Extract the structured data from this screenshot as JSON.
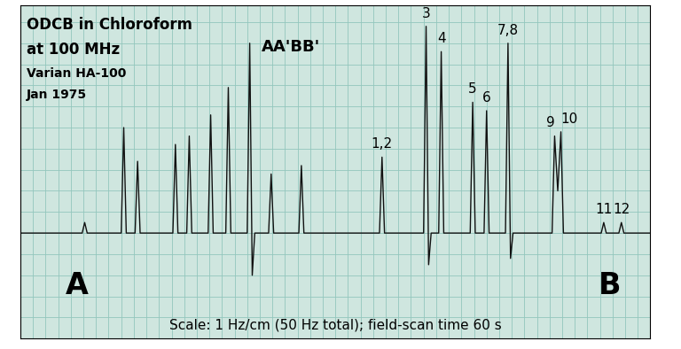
{
  "chart_data": {
    "type": "line",
    "title": "AA'BB'",
    "header": [
      "ODCB in Chloroform",
      "at 100 MHz"
    ],
    "instrument": "Varian HA-100",
    "date": "Jan 1975",
    "footer": "Scale: 1 Hz/cm (50 Hz total); field-scan time 60 s",
    "x": [
      0,
      4.9,
      5.1,
      5.3,
      8.0,
      8.2,
      8.4,
      9.1,
      9.3,
      9.5,
      12.1,
      12.3,
      12.5,
      13.2,
      13.4,
      13.6,
      14.9,
      15.1,
      15.3,
      16.3,
      16.5,
      16.7,
      18.0,
      18.2,
      18.4,
      18.6,
      19.7,
      19.9,
      20.1,
      22.1,
      22.3,
      22.5,
      28.5,
      28.7,
      28.9,
      32.0,
      32.2,
      32.4,
      32.6,
      33.2,
      33.4,
      33.6,
      35.7,
      35.9,
      36.1,
      36.8,
      37.0,
      37.2,
      38.5,
      38.7,
      38.9,
      39.1,
      42.2,
      42.4,
      42.65,
      42.9,
      43.1,
      46.1,
      46.3,
      46.5,
      47.5,
      47.7,
      47.9,
      50
    ],
    "values": [
      0,
      0,
      5,
      0,
      0,
      50,
      0,
      0,
      34,
      0,
      0,
      42,
      0,
      0,
      46,
      0,
      0,
      56,
      0,
      0,
      69,
      0,
      0,
      90,
      -20,
      0,
      0,
      28,
      0,
      0,
      32,
      0,
      0,
      36,
      0,
      0,
      98,
      -15,
      0,
      0,
      86,
      0,
      0,
      62,
      0,
      0,
      58,
      0,
      0,
      90,
      -12,
      0,
      0,
      46,
      20,
      48,
      0,
      0,
      5,
      0,
      0,
      5,
      0,
      0
    ],
    "color": "#111111",
    "peak_labels": [
      {
        "text": "1,2",
        "x": 28.7
      },
      {
        "text": "3",
        "x": 32.2
      },
      {
        "text": "4",
        "x": 33.4
      },
      {
        "text": "5",
        "x": 35.9
      },
      {
        "text": "6",
        "x": 37.0
      },
      {
        "text": "7,8",
        "x": 38.7
      },
      {
        "text": "9",
        "x": 42.4
      },
      {
        "text": "10",
        "x": 42.9
      },
      {
        "text": "11",
        "x": 46.3
      },
      {
        "text": "12",
        "x": 47.7
      }
    ],
    "end_labels": [
      {
        "text": "A",
        "x": 4.5
      },
      {
        "text": "B",
        "x": 46.8
      }
    ],
    "xlim": [
      0,
      50
    ],
    "ylim": [
      -50,
      108
    ],
    "xticks": [
      0,
      1,
      2,
      3,
      4,
      5,
      6,
      7,
      8,
      9,
      10,
      11,
      12,
      13,
      14,
      15,
      16,
      17,
      18,
      19,
      20,
      21,
      22,
      23,
      24,
      25,
      26,
      27,
      28,
      29,
      30,
      31,
      32,
      33,
      34,
      35,
      36,
      37,
      38,
      39,
      40,
      41,
      42,
      43,
      44,
      45,
      46,
      47,
      48,
      49,
      50
    ],
    "yticks": [
      -50,
      -40,
      -30,
      -20,
      -10,
      0,
      10,
      20,
      30,
      40,
      50,
      60,
      70,
      80,
      90,
      100
    ],
    "grid": true,
    "tick_labels": false
  }
}
